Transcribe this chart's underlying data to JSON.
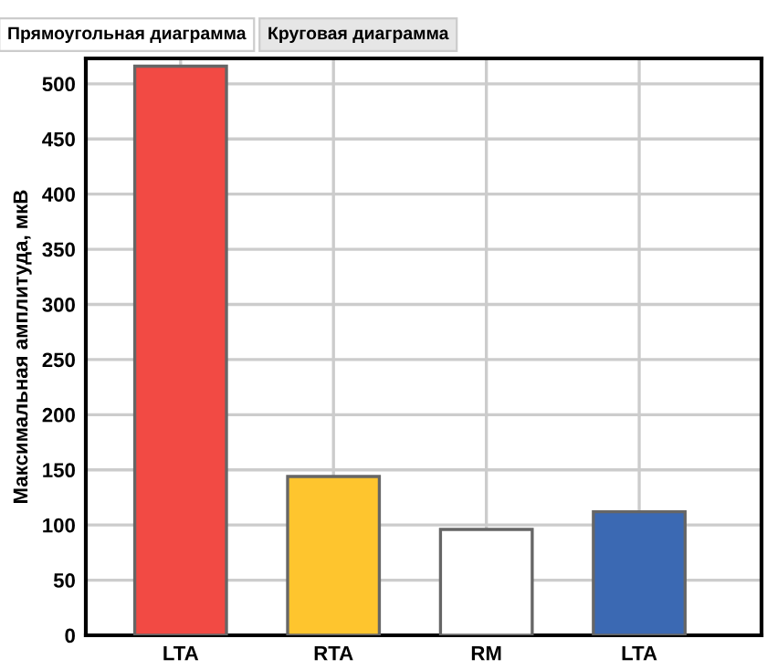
{
  "chart_data": {
    "type": "bar",
    "ylabel": "Максимальная амплитуда, мкВ",
    "categories": [
      "LTA",
      "RTA",
      "RM",
      "LTA"
    ],
    "values": [
      516,
      144,
      96,
      112
    ],
    "colors": [
      "#f24a44",
      "#fec52e",
      "#ffffff",
      "#3b69b3"
    ],
    "ylim": [
      0,
      523
    ],
    "yticks": [
      0,
      50,
      100,
      150,
      200,
      250,
      300,
      350,
      400,
      450,
      500
    ],
    "grid": true,
    "annotations": [
      "Прямоугольная диаграмма",
      "Круговая диаграмма"
    ]
  }
}
